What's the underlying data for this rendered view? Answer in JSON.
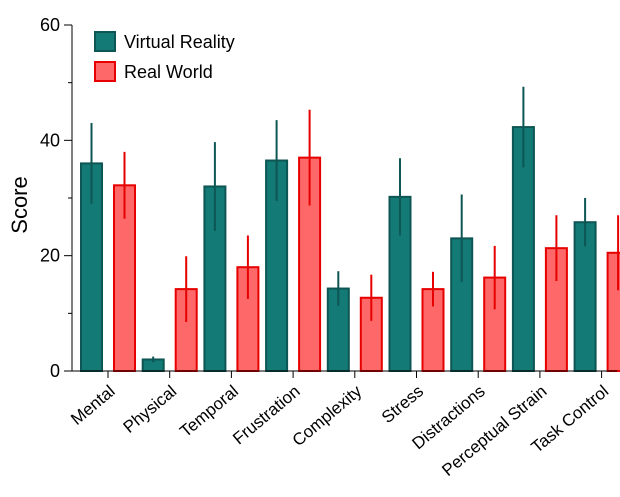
{
  "chart_data": {
    "type": "bar",
    "ylabel": "Score",
    "ylim": [
      0,
      60
    ],
    "yticks": [
      0,
      20,
      40,
      60
    ],
    "categories": [
      "Mental",
      "Physical",
      "Temporal",
      "Frustration",
      "Complexity",
      "Stress",
      "Distractions",
      "Perceptual Strain",
      "Task Control"
    ],
    "series": [
      {
        "name": "Virtual Reality",
        "color": "#137a76",
        "edge": "#0d5653",
        "values": [
          36,
          2,
          32,
          36.5,
          14.3,
          30.2,
          23,
          42.3,
          25.8
        ],
        "error": [
          7,
          0.5,
          7.7,
          7,
          3,
          6.7,
          7.6,
          7,
          4.2
        ]
      },
      {
        "name": "Real World",
        "color": "#ff6868",
        "edge": "#e60000",
        "values": [
          32.2,
          14.2,
          18,
          37,
          12.7,
          14.2,
          16.2,
          21.3,
          20.5
        ],
        "error": [
          5.8,
          5.7,
          5.5,
          8.3,
          4,
          3,
          5.5,
          5.7,
          6.5
        ]
      }
    ],
    "legend": {
      "position": "top-left"
    },
    "grid": false
  }
}
